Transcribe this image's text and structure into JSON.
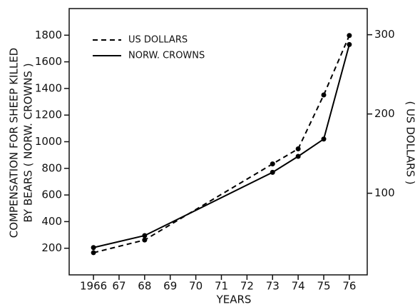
{
  "chart_data": {
    "type": "line",
    "x_label": "YEARS",
    "y_label": [
      "COMPENSATION FOR SHEEP KILLED",
      "BY BEARS ( NORW. CROWNS )"
    ],
    "y2_label": "( US DOLLARS )",
    "xlim": [
      1965.05,
      1976.7
    ],
    "xticks": [
      1966,
      {
        "value": 1967,
        "label": "67"
      },
      {
        "value": 1968,
        "label": "68"
      },
      {
        "value": 1969,
        "label": "69"
      },
      {
        "value": 1970,
        "label": "70"
      },
      {
        "value": 1971,
        "label": "71"
      },
      {
        "value": 1972,
        "label": "72"
      },
      {
        "value": 1973,
        "label": "73"
      },
      {
        "value": 1974,
        "label": "74"
      },
      {
        "value": 1975,
        "label": "75"
      },
      {
        "value": 1976,
        "label": "76"
      }
    ],
    "ylim": [
      0,
      2000
    ],
    "yticks": [
      200,
      400,
      600,
      800,
      1000,
      1200,
      1400,
      1600,
      1800
    ],
    "y2lim": [
      -3,
      333
    ],
    "y2ticks": [
      100,
      200,
      300
    ],
    "legend": "upper left",
    "series": [
      {
        "name": "US DOLLARS",
        "color": "#000000",
        "line_style": "dashed",
        "axis": "y2",
        "x": [
          1966,
          1968,
          1973,
          1974,
          1975,
          1976
        ],
        "values": [
          25,
          41,
          137,
          156,
          224,
          299
        ]
      },
      {
        "name": "NORW. CROWNS",
        "color": "#000000",
        "line_style": "solid",
        "x": [
          1966,
          1968,
          1973,
          1974,
          1975,
          1976
        ],
        "values": [
          205,
          295,
          770,
          890,
          1020,
          1730
        ]
      }
    ]
  }
}
